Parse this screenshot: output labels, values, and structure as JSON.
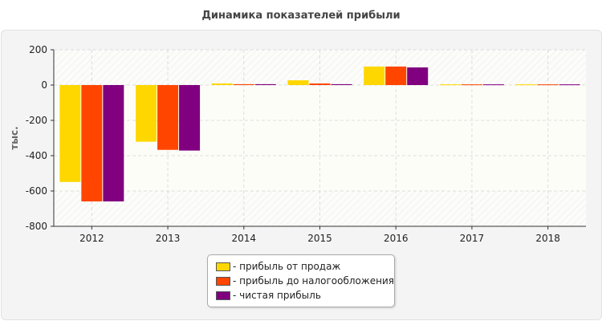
{
  "chart_data": {
    "type": "bar",
    "title": "Динамика показателей прибыли",
    "ylabel": "тыс.",
    "categories": [
      "2012",
      "2013",
      "2014",
      "2015",
      "2016",
      "2017",
      "2018"
    ],
    "ylim": [
      -800,
      200
    ],
    "yticks": [
      200,
      0,
      -200,
      -400,
      -600,
      -800
    ],
    "grid": true,
    "legend_position": "bottom",
    "series": [
      {
        "name": "- прибыль от продаж",
        "color": "#FFD700",
        "values": [
          -549,
          -321,
          9,
          27,
          105,
          4,
          4
        ]
      },
      {
        "name": "- прибыль до налогообложения",
        "color": "#FF4500",
        "values": [
          -659,
          -367,
          5,
          9,
          105,
          4,
          4
        ]
      },
      {
        "name": "- чистая прибыль",
        "color": "#800080",
        "values": [
          -659,
          -371,
          5,
          5,
          100,
          4,
          4
        ]
      }
    ]
  }
}
